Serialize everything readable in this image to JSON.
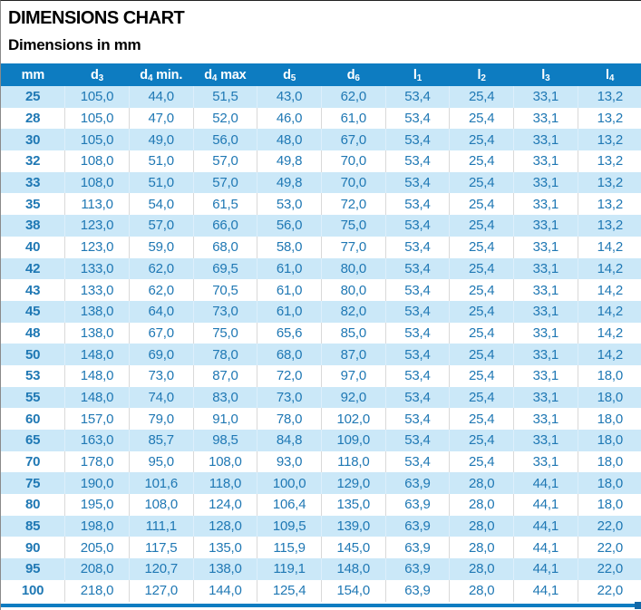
{
  "page": {
    "title": "DIMENSIONS CHART",
    "subtitle": "Dimensions in mm"
  },
  "colors": {
    "header_bg": "#0d7cc1",
    "row_alt_bg": "#cbe8f8",
    "data_text": "#1f78b4",
    "first_col_text": "#14659e",
    "bottom_bar": "#0d7cc1",
    "bottom_corner": "#1168a8"
  },
  "table": {
    "columns": [
      {
        "label": "mm",
        "sub": "",
        "suffix": ""
      },
      {
        "label": "d",
        "sub": "3",
        "suffix": ""
      },
      {
        "label": "d",
        "sub": "4",
        "suffix": " min."
      },
      {
        "label": "d",
        "sub": "4",
        "suffix": " max"
      },
      {
        "label": "d",
        "sub": "5",
        "suffix": ""
      },
      {
        "label": "d",
        "sub": "6",
        "suffix": ""
      },
      {
        "label": "l",
        "sub": "1",
        "suffix": ""
      },
      {
        "label": "l",
        "sub": "2",
        "suffix": ""
      },
      {
        "label": "l",
        "sub": "3",
        "suffix": ""
      },
      {
        "label": "l",
        "sub": "4",
        "suffix": ""
      }
    ],
    "rows": [
      [
        "25",
        "105,0",
        "44,0",
        "51,5",
        "43,0",
        "62,0",
        "53,4",
        "25,4",
        "33,1",
        "13,2"
      ],
      [
        "28",
        "105,0",
        "47,0",
        "52,0",
        "46,0",
        "61,0",
        "53,4",
        "25,4",
        "33,1",
        "13,2"
      ],
      [
        "30",
        "105,0",
        "49,0",
        "56,0",
        "48,0",
        "67,0",
        "53,4",
        "25,4",
        "33,1",
        "13,2"
      ],
      [
        "32",
        "108,0",
        "51,0",
        "57,0",
        "49,8",
        "70,0",
        "53,4",
        "25,4",
        "33,1",
        "13,2"
      ],
      [
        "33",
        "108,0",
        "51,0",
        "57,0",
        "49,8",
        "70,0",
        "53,4",
        "25,4",
        "33,1",
        "13,2"
      ],
      [
        "35",
        "113,0",
        "54,0",
        "61,5",
        "53,0",
        "72,0",
        "53,4",
        "25,4",
        "33,1",
        "13,2"
      ],
      [
        "38",
        "123,0",
        "57,0",
        "66,0",
        "56,0",
        "75,0",
        "53,4",
        "25,4",
        "33,1",
        "13,2"
      ],
      [
        "40",
        "123,0",
        "59,0",
        "68,0",
        "58,0",
        "77,0",
        "53,4",
        "25,4",
        "33,1",
        "14,2"
      ],
      [
        "42",
        "133,0",
        "62,0",
        "69,5",
        "61,0",
        "80,0",
        "53,4",
        "25,4",
        "33,1",
        "14,2"
      ],
      [
        "43",
        "133,0",
        "62,0",
        "70,5",
        "61,0",
        "80,0",
        "53,4",
        "25,4",
        "33,1",
        "14,2"
      ],
      [
        "45",
        "138,0",
        "64,0",
        "73,0",
        "61,0",
        "82,0",
        "53,4",
        "25,4",
        "33,1",
        "14,2"
      ],
      [
        "48",
        "138,0",
        "67,0",
        "75,0",
        "65,6",
        "85,0",
        "53,4",
        "25,4",
        "33,1",
        "14,2"
      ],
      [
        "50",
        "148,0",
        "69,0",
        "78,0",
        "68,0",
        "87,0",
        "53,4",
        "25,4",
        "33,1",
        "14,2"
      ],
      [
        "53",
        "148,0",
        "73,0",
        "87,0",
        "72,0",
        "97,0",
        "53,4",
        "25,4",
        "33,1",
        "18,0"
      ],
      [
        "55",
        "148,0",
        "74,0",
        "83,0",
        "73,0",
        "92,0",
        "53,4",
        "25,4",
        "33,1",
        "18,0"
      ],
      [
        "60",
        "157,0",
        "79,0",
        "91,0",
        "78,0",
        "102,0",
        "53,4",
        "25,4",
        "33,1",
        "18,0"
      ],
      [
        "65",
        "163,0",
        "85,7",
        "98,5",
        "84,8",
        "109,0",
        "53,4",
        "25,4",
        "33,1",
        "18,0"
      ],
      [
        "70",
        "178,0",
        "95,0",
        "108,0",
        "93,0",
        "118,0",
        "53,4",
        "25,4",
        "33,1",
        "18,0"
      ],
      [
        "75",
        "190,0",
        "101,6",
        "118,0",
        "100,0",
        "129,0",
        "63,9",
        "28,0",
        "44,1",
        "18,0"
      ],
      [
        "80",
        "195,0",
        "108,0",
        "124,0",
        "106,4",
        "135,0",
        "63,9",
        "28,0",
        "44,1",
        "18,0"
      ],
      [
        "85",
        "198,0",
        "111,1",
        "128,0",
        "109,5",
        "139,0",
        "63,9",
        "28,0",
        "44,1",
        "22,0"
      ],
      [
        "90",
        "205,0",
        "117,5",
        "135,0",
        "115,9",
        "145,0",
        "63,9",
        "28,0",
        "44,1",
        "22,0"
      ],
      [
        "95",
        "208,0",
        "120,7",
        "138,0",
        "119,1",
        "148,0",
        "63,9",
        "28,0",
        "44,1",
        "22,0"
      ],
      [
        "100",
        "218,0",
        "127,0",
        "144,0",
        "125,4",
        "154,0",
        "63,9",
        "28,0",
        "44,1",
        "22,0"
      ]
    ]
  }
}
